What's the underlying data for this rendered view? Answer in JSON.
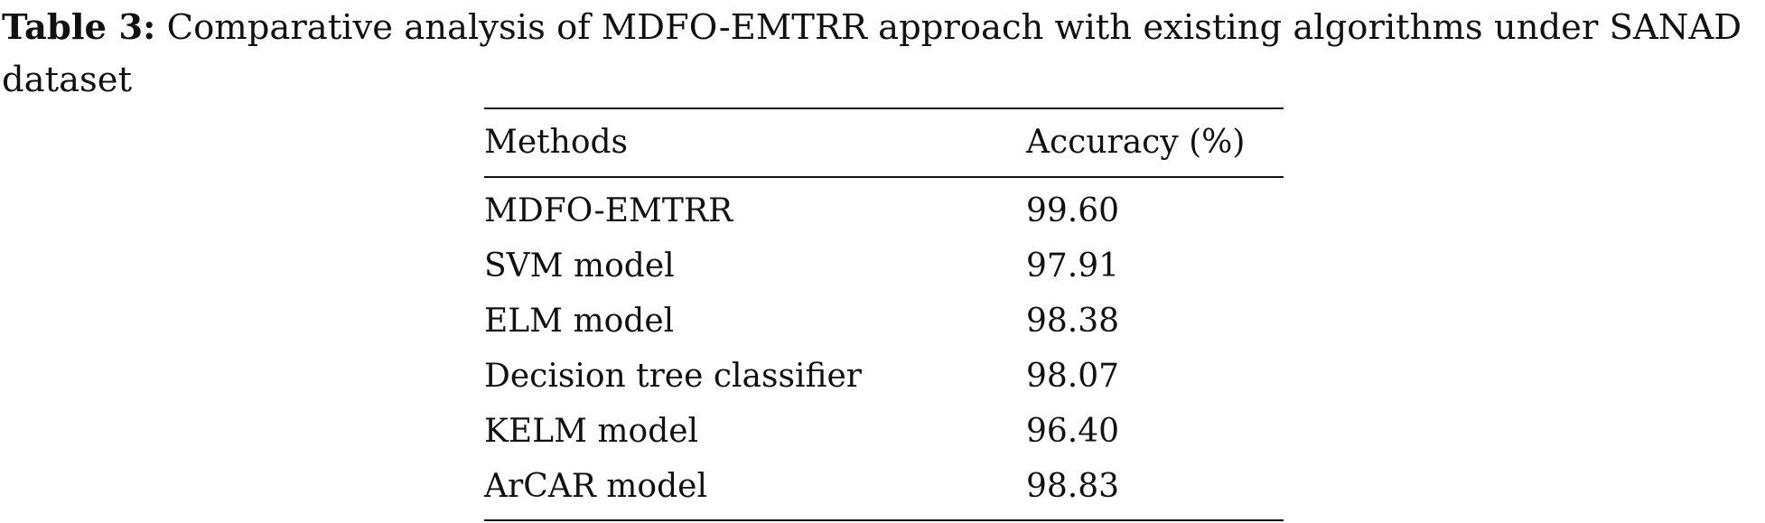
{
  "caption": {
    "label": "Table 3:",
    "text": "Comparative analysis of MDFO-EMTRR approach with existing algorithms under SANAD dataset"
  },
  "table": {
    "header": [
      "Methods",
      "Accuracy (%)"
    ],
    "rows": [
      [
        "MDFO-EMTRR",
        "99.60"
      ],
      [
        "SVM model",
        "97.91"
      ],
      [
        "ELM model",
        "98.38"
      ],
      [
        "Decision tree classifier",
        "98.07"
      ],
      [
        "KELM model",
        "96.40"
      ],
      [
        "ArCAR model",
        "98.83"
      ]
    ]
  }
}
